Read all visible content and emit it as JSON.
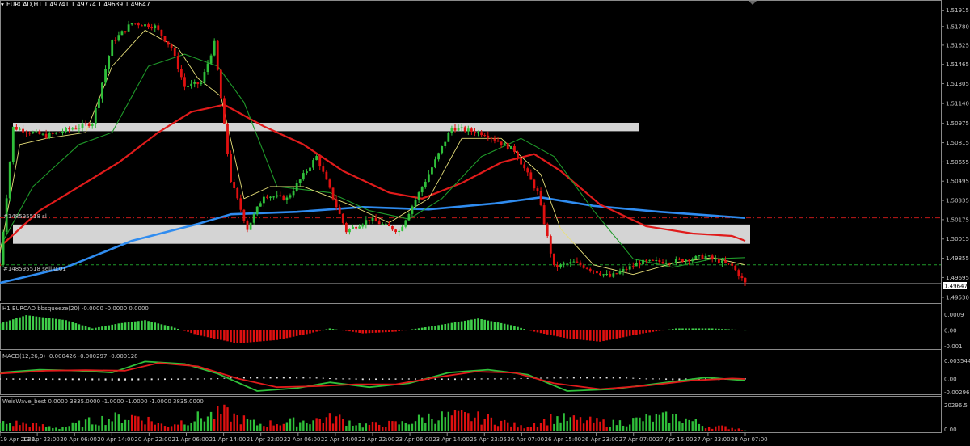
{
  "window": {
    "symbol_header": "EURCAD,H1  1.49741 1.49774 1.49639 1.49647"
  },
  "main_panel": {
    "order_labels": [
      "#148595518 sl",
      "#148595518 sell 0.01"
    ],
    "price_ticks": [
      "1.51915",
      "1.51780",
      "1.51625",
      "1.51465",
      "1.51305",
      "1.51140",
      "1.50975",
      "1.50815",
      "1.50655",
      "1.50495",
      "1.50335",
      "1.50175",
      "1.50015",
      "1.49855",
      "1.49695",
      "1.49530"
    ],
    "current_price": "1.49647",
    "ylim": [
      1.4953,
      1.5198
    ],
    "levels": {
      "stop_loss": 1.5019,
      "sell_entry": 1.498,
      "current": 1.49647
    },
    "zones": [
      {
        "from": 1.5091,
        "to": 1.5098,
        "x_start": 0.0,
        "x_end": 0.645
      },
      {
        "from": 1.49975,
        "to": 1.50135,
        "x_start": 0.0,
        "x_end": 0.76
      }
    ]
  },
  "indicator_labels": {
    "bbsqueeze": "H1 EURCAD bbsqueeze(20) -0.0000 -0.0000 0.0000",
    "macd": "MACD(12,26,9) -0.000426 -0.000297 -0.000128",
    "weis": "WeisWave_best 0.0000 3835.0000 -1.0000 -1.0000 -1.0000 3835.0000"
  },
  "indicator_ticks": {
    "bbsqueeze": [
      "0.0009",
      "0.00",
      "-0.001"
    ],
    "macd": [
      "0.003544",
      "0.00",
      "-0.002965"
    ],
    "weis": [
      "20296.5",
      "0.00"
    ]
  },
  "time_labels": [
    "19 Apr 2021",
    "19 Apr 22:00",
    "20 Apr 06:00",
    "20 Apr 14:00",
    "20 Apr 22:00",
    "21 Apr 06:00",
    "21 Apr 14:00",
    "21 Apr 22:00",
    "22 Apr 06:00",
    "22 Apr 14:00",
    "22 Apr 22:00",
    "23 Apr 06:00",
    "23 Apr 14:00",
    "25 Apr 23:05",
    "26 Apr 07:00",
    "26 Apr 15:00",
    "26 Apr 23:00",
    "27 Apr 07:00",
    "27 Apr 15:00",
    "27 Apr 23:00",
    "28 Apr 07:00"
  ],
  "colors": {
    "bull": "#2fbf3a",
    "bear": "#e01010",
    "ma_fast": "#e8e07a",
    "ma_green": "#1f9a2a",
    "ma_red": "#e01b1b",
    "ma_blue": "#2f8cf0",
    "zone": "#d4d4d4",
    "squeeze_pos": "#3fcf4a",
    "squeeze_neg": "#e01010",
    "macd_hist": "#e8e8e8",
    "macd_main": "#2fbf3a",
    "macd_signal": "#e01b1b",
    "weis_up": "#2fbf3a",
    "weis_down": "#e01010"
  },
  "chart_data": {
    "type": "candlestick",
    "symbol": "EURCAD",
    "timeframe": "H1",
    "ohlc_last": {
      "open": 1.49741,
      "high": 1.49774,
      "low": 1.49639,
      "close": 1.49647
    },
    "close_path": [
      {
        "t": 0,
        "p": 1.498
      },
      {
        "t": 4,
        "p": 1.5094
      },
      {
        "t": 14,
        "p": 1.5087
      },
      {
        "t": 28,
        "p": 1.5098
      },
      {
        "t": 34,
        "p": 1.5165
      },
      {
        "t": 40,
        "p": 1.5181
      },
      {
        "t": 47,
        "p": 1.5178
      },
      {
        "t": 52,
        "p": 1.516
      },
      {
        "t": 56,
        "p": 1.5128
      },
      {
        "t": 61,
        "p": 1.5131
      },
      {
        "t": 65,
        "p": 1.5164
      },
      {
        "t": 70,
        "p": 1.505
      },
      {
        "t": 75,
        "p": 1.501
      },
      {
        "t": 80,
        "p": 1.5038
      },
      {
        "t": 87,
        "p": 1.5035
      },
      {
        "t": 96,
        "p": 1.507
      },
      {
        "t": 105,
        "p": 1.5008
      },
      {
        "t": 112,
        "p": 1.5018
      },
      {
        "t": 121,
        "p": 1.5008
      },
      {
        "t": 129,
        "p": 1.505
      },
      {
        "t": 137,
        "p": 1.5094
      },
      {
        "t": 147,
        "p": 1.5089
      },
      {
        "t": 156,
        "p": 1.5075
      },
      {
        "t": 163,
        "p": 1.504
      },
      {
        "t": 168,
        "p": 1.4978
      },
      {
        "t": 174,
        "p": 1.4982
      },
      {
        "t": 185,
        "p": 1.497
      },
      {
        "t": 194,
        "p": 1.4982
      },
      {
        "t": 204,
        "p": 1.4983
      },
      {
        "t": 214,
        "p": 1.4987
      },
      {
        "t": 222,
        "p": 1.4979
      },
      {
        "t": 226,
        "p": 1.49647
      }
    ],
    "ma_fast_path": [
      {
        "t": 0,
        "p": 1.499
      },
      {
        "t": 6,
        "p": 1.508
      },
      {
        "t": 14,
        "p": 1.5085
      },
      {
        "t": 26,
        "p": 1.509
      },
      {
        "t": 34,
        "p": 1.5145
      },
      {
        "t": 44,
        "p": 1.5175
      },
      {
        "t": 54,
        "p": 1.516
      },
      {
        "t": 60,
        "p": 1.5135
      },
      {
        "t": 67,
        "p": 1.512
      },
      {
        "t": 74,
        "p": 1.5035
      },
      {
        "t": 82,
        "p": 1.5045
      },
      {
        "t": 92,
        "p": 1.5045
      },
      {
        "t": 106,
        "p": 1.503
      },
      {
        "t": 118,
        "p": 1.5015
      },
      {
        "t": 130,
        "p": 1.5035
      },
      {
        "t": 140,
        "p": 1.5085
      },
      {
        "t": 152,
        "p": 1.5085
      },
      {
        "t": 164,
        "p": 1.5055
      },
      {
        "t": 170,
        "p": 1.501
      },
      {
        "t": 180,
        "p": 1.498
      },
      {
        "t": 192,
        "p": 1.4972
      },
      {
        "t": 205,
        "p": 1.4982
      },
      {
        "t": 216,
        "p": 1.4986
      },
      {
        "t": 226,
        "p": 1.498
      }
    ],
    "ma_green_path": [
      {
        "t": 0,
        "p": 1.4995
      },
      {
        "t": 10,
        "p": 1.5045
      },
      {
        "t": 24,
        "p": 1.508
      },
      {
        "t": 34,
        "p": 1.509
      },
      {
        "t": 45,
        "p": 1.5145
      },
      {
        "t": 56,
        "p": 1.5155
      },
      {
        "t": 66,
        "p": 1.5145
      },
      {
        "t": 74,
        "p": 1.5115
      },
      {
        "t": 84,
        "p": 1.5045
      },
      {
        "t": 100,
        "p": 1.504
      },
      {
        "t": 112,
        "p": 1.5025
      },
      {
        "t": 124,
        "p": 1.5018
      },
      {
        "t": 134,
        "p": 1.5035
      },
      {
        "t": 146,
        "p": 1.507
      },
      {
        "t": 158,
        "p": 1.5085
      },
      {
        "t": 168,
        "p": 1.507
      },
      {
        "t": 180,
        "p": 1.5025
      },
      {
        "t": 192,
        "p": 1.4985
      },
      {
        "t": 204,
        "p": 1.4978
      },
      {
        "t": 216,
        "p": 1.4985
      },
      {
        "t": 226,
        "p": 1.4986
      }
    ],
    "ma_red_path": [
      {
        "t": 0,
        "p": 1.4995
      },
      {
        "t": 12,
        "p": 1.5025
      },
      {
        "t": 24,
        "p": 1.5045
      },
      {
        "t": 36,
        "p": 1.5065
      },
      {
        "t": 48,
        "p": 1.509
      },
      {
        "t": 58,
        "p": 1.5107
      },
      {
        "t": 68,
        "p": 1.5113
      },
      {
        "t": 80,
        "p": 1.5095
      },
      {
        "t": 92,
        "p": 1.508
      },
      {
        "t": 104,
        "p": 1.5058
      },
      {
        "t": 118,
        "p": 1.504
      },
      {
        "t": 128,
        "p": 1.5035
      },
      {
        "t": 140,
        "p": 1.5048
      },
      {
        "t": 152,
        "p": 1.5065
      },
      {
        "t": 162,
        "p": 1.5072
      },
      {
        "t": 170,
        "p": 1.5058
      },
      {
        "t": 182,
        "p": 1.503
      },
      {
        "t": 196,
        "p": 1.5012
      },
      {
        "t": 210,
        "p": 1.5006
      },
      {
        "t": 222,
        "p": 1.5004
      },
      {
        "t": 226,
        "p": 1.5
      }
    ],
    "ma_blue_path": [
      {
        "t": 0,
        "p": 1.4965
      },
      {
        "t": 20,
        "p": 1.4978
      },
      {
        "t": 40,
        "p": 1.5
      },
      {
        "t": 60,
        "p": 1.5014
      },
      {
        "t": 70,
        "p": 1.5022
      },
      {
        "t": 90,
        "p": 1.5024
      },
      {
        "t": 110,
        "p": 1.5028
      },
      {
        "t": 130,
        "p": 1.5026
      },
      {
        "t": 150,
        "p": 1.5031
      },
      {
        "t": 164,
        "p": 1.5036
      },
      {
        "t": 180,
        "p": 1.5029
      },
      {
        "t": 200,
        "p": 1.5024
      },
      {
        "t": 226,
        "p": 1.5019
      }
    ],
    "bbsqueeze_path": [
      {
        "t": 0,
        "p": 0.0004
      },
      {
        "t": 8,
        "p": 0.0009
      },
      {
        "t": 20,
        "p": 0.0006
      },
      {
        "t": 28,
        "p": 0.0001
      },
      {
        "t": 36,
        "p": 0.0004
      },
      {
        "t": 44,
        "p": 0.0006
      },
      {
        "t": 52,
        "p": 0.0002
      },
      {
        "t": 60,
        "p": -0.0003
      },
      {
        "t": 72,
        "p": -0.0008
      },
      {
        "t": 84,
        "p": -0.0006
      },
      {
        "t": 94,
        "p": -0.0002
      },
      {
        "t": 100,
        "p": 0.0001
      },
      {
        "t": 110,
        "p": -0.0002
      },
      {
        "t": 120,
        "p": -0.0001
      },
      {
        "t": 130,
        "p": 0.0002
      },
      {
        "t": 145,
        "p": 0.0007
      },
      {
        "t": 155,
        "p": 0.0003
      },
      {
        "t": 162,
        "p": -0.0001
      },
      {
        "t": 172,
        "p": -0.0005
      },
      {
        "t": 182,
        "p": -0.0007
      },
      {
        "t": 195,
        "p": -0.0002
      },
      {
        "t": 205,
        "p": 0.0001
      },
      {
        "t": 216,
        "p": 0.0001
      },
      {
        "t": 226,
        "p": 0.0
      }
    ],
    "macd_main_path": [
      {
        "t": 0,
        "p": 0.0012
      },
      {
        "t": 12,
        "p": 0.0018
      },
      {
        "t": 24,
        "p": 0.0016
      },
      {
        "t": 34,
        "p": 0.0012
      },
      {
        "t": 44,
        "p": 0.0035
      },
      {
        "t": 56,
        "p": 0.003
      },
      {
        "t": 66,
        "p": 0.001
      },
      {
        "t": 78,
        "p": -0.0026
      },
      {
        "t": 90,
        "p": -0.002
      },
      {
        "t": 100,
        "p": -0.0008
      },
      {
        "t": 112,
        "p": -0.0018
      },
      {
        "t": 124,
        "p": -0.001
      },
      {
        "t": 136,
        "p": 0.0012
      },
      {
        "t": 148,
        "p": 0.0018
      },
      {
        "t": 160,
        "p": 0.0008
      },
      {
        "t": 172,
        "p": -0.0026
      },
      {
        "t": 186,
        "p": -0.0022
      },
      {
        "t": 200,
        "p": -0.001
      },
      {
        "t": 214,
        "p": 0.0002
      },
      {
        "t": 226,
        "p": -0.0004
      }
    ],
    "macd_signal_path": [
      {
        "t": 0,
        "p": 0.001
      },
      {
        "t": 14,
        "p": 0.0016
      },
      {
        "t": 26,
        "p": 0.0017
      },
      {
        "t": 38,
        "p": 0.0016
      },
      {
        "t": 48,
        "p": 0.0032
      },
      {
        "t": 60,
        "p": 0.0025
      },
      {
        "t": 72,
        "p": 0.0
      },
      {
        "t": 84,
        "p": -0.0018
      },
      {
        "t": 96,
        "p": -0.0016
      },
      {
        "t": 108,
        "p": -0.0012
      },
      {
        "t": 120,
        "p": -0.0012
      },
      {
        "t": 132,
        "p": 0.0002
      },
      {
        "t": 144,
        "p": 0.0014
      },
      {
        "t": 156,
        "p": 0.0012
      },
      {
        "t": 168,
        "p": -0.001
      },
      {
        "t": 182,
        "p": -0.0022
      },
      {
        "t": 196,
        "p": -0.0015
      },
      {
        "t": 210,
        "p": -0.0004
      },
      {
        "t": 222,
        "p": 0.0
      },
      {
        "t": 226,
        "p": -0.0001
      }
    ],
    "macd_hist_path": [
      {
        "t": 0,
        "p": -0.0002
      },
      {
        "t": 20,
        "p": -0.0003
      },
      {
        "t": 36,
        "p": -0.0004
      },
      {
        "t": 48,
        "p": -0.0003
      },
      {
        "t": 60,
        "p": -0.0002
      },
      {
        "t": 70,
        "p": 0.0002
      },
      {
        "t": 82,
        "p": 0.0003
      },
      {
        "t": 96,
        "p": 0.0002
      },
      {
        "t": 110,
        "p": -0.0003
      },
      {
        "t": 124,
        "p": -0.0002
      },
      {
        "t": 140,
        "p": -0.0003
      },
      {
        "t": 160,
        "p": 0.0001
      },
      {
        "t": 176,
        "p": 0.0003
      },
      {
        "t": 190,
        "p": 0.0002
      },
      {
        "t": 206,
        "p": -0.0004
      },
      {
        "t": 218,
        "p": -0.0003
      },
      {
        "t": 226,
        "p": -0.0001
      }
    ],
    "weis_peaks": [
      {
        "t": 6,
        "v": 9000
      },
      {
        "t": 18,
        "v": 4000
      },
      {
        "t": 30,
        "v": 13000
      },
      {
        "t": 42,
        "v": 17000
      },
      {
        "t": 50,
        "v": 6000
      },
      {
        "t": 58,
        "v": 14000
      },
      {
        "t": 68,
        "v": 20296
      },
      {
        "t": 78,
        "v": 8000
      },
      {
        "t": 90,
        "v": 11000
      },
      {
        "t": 102,
        "v": 15000
      },
      {
        "t": 110,
        "v": 7000
      },
      {
        "t": 122,
        "v": 9000
      },
      {
        "t": 130,
        "v": 16000
      },
      {
        "t": 140,
        "v": 17000
      },
      {
        "t": 150,
        "v": 13000
      },
      {
        "t": 158,
        "v": 5000
      },
      {
        "t": 168,
        "v": 15000
      },
      {
        "t": 176,
        "v": 12000
      },
      {
        "t": 186,
        "v": 9000
      },
      {
        "t": 196,
        "v": 14000
      },
      {
        "t": 206,
        "v": 16000
      },
      {
        "t": 214,
        "v": 6000
      },
      {
        "t": 222,
        "v": 4000
      },
      {
        "t": 226,
        "v": 2000
      }
    ],
    "x_range": [
      0,
      226
    ],
    "bbsqueeze_ylim": [
      -0.0011,
      0.0011
    ],
    "macd_ylim": [
      -0.0031,
      0.0039
    ],
    "weis_ylim": [
      0,
      21500
    ]
  }
}
